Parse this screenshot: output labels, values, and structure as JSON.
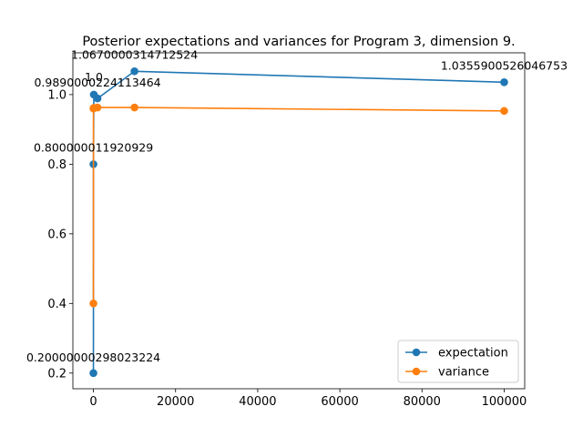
{
  "chart_data": {
    "type": "line",
    "title": "Posterior expectations and variances for Program 3, dimension 9.",
    "xlabel": "",
    "ylabel": "",
    "xlim": [
      -5000,
      105000
    ],
    "ylim": [
      0.155,
      1.12
    ],
    "x_ticks": [
      0,
      20000,
      40000,
      60000,
      80000,
      100000
    ],
    "x_tick_labels": [
      "0",
      "20000",
      "40000",
      "60000",
      "80000",
      "100000"
    ],
    "y_ticks": [
      0.2,
      0.4,
      0.6,
      0.8,
      1.0
    ],
    "y_tick_labels": [
      "0.2",
      "0.4",
      "0.6",
      "0.8",
      "1.0"
    ],
    "grid": false,
    "legend_position": "lower-right",
    "series": [
      {
        "name": "expectation",
        "color": "#1f77b4",
        "marker": "circle",
        "x": [
          1,
          10,
          100,
          1000,
          10000,
          100000
        ],
        "y": [
          0.20000000298023224,
          0.800000011920929,
          1.0,
          0.9890000224113464,
          1.0670000314712524,
          1.0355900526046753
        ]
      },
      {
        "name": "variance",
        "color": "#ff7f0e",
        "marker": "circle",
        "x": [
          1,
          10,
          100,
          1000,
          10000,
          100000
        ],
        "y": [
          0.4,
          0.96,
          0.962,
          0.963,
          0.963,
          0.953
        ]
      }
    ],
    "annotations": [
      {
        "text": "0.20000000298023224",
        "x": 1,
        "y": 0.20000000298023224
      },
      {
        "text": "0.800000011920929",
        "x": 10,
        "y": 0.800000011920929
      },
      {
        "text": "1.0",
        "x": 100,
        "y": 1.0
      },
      {
        "text": "0.9890000224113464",
        "x": 1000,
        "y": 0.9890000224113464
      },
      {
        "text": "1.0670000314712524",
        "x": 10000,
        "y": 1.0670000314712524
      },
      {
        "text": "1.0355900526046753",
        "x": 100000,
        "y": 1.0355900526046753
      }
    ]
  }
}
